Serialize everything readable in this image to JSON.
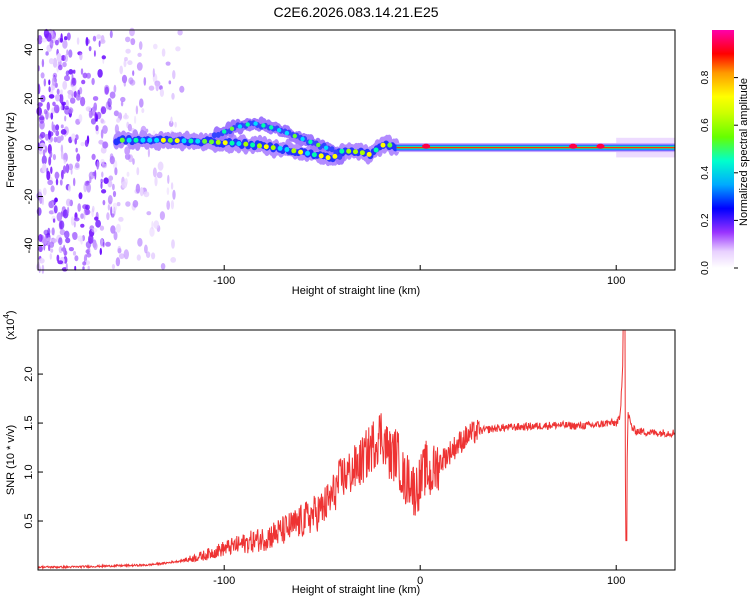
{
  "title": "C2E6.2026.083.14.21.E25",
  "chart_data": [
    {
      "type": "heatmap",
      "xlabel": "Height of straight line (km)",
      "ylabel": "Frequency (Hz)",
      "xlim": [
        -195,
        130
      ],
      "ylim": [
        -50,
        48
      ],
      "xticks": [
        -100,
        0,
        100
      ],
      "xtick_labels": [
        "-100",
        "",
        "100"
      ],
      "yticks": [
        -40,
        -20,
        0,
        20,
        40
      ],
      "ytick_labels": [
        "-40",
        "-20",
        "0",
        "20",
        "40"
      ],
      "grid": false,
      "colorbar": {
        "label": "Normalized spectral amplitude",
        "range": [
          0,
          1
        ],
        "ticks": [
          0,
          0.2,
          0.4,
          0.6,
          0.8
        ],
        "tick_labels": [
          "0.0",
          "0.2",
          "0.4",
          "0.6",
          "0.8"
        ],
        "position": "right"
      },
      "ridge": {
        "x": [
          -155,
          -130,
          -110,
          -100,
          -90,
          -80,
          -70,
          -60,
          -50,
          -45,
          -40,
          -35,
          -30,
          -25,
          -20,
          -15,
          -10,
          -5,
          0,
          5,
          10,
          20,
          40,
          60,
          80,
          100,
          105,
          110,
          130
        ],
        "y": [
          3,
          3,
          2.5,
          2,
          1.5,
          0.5,
          -0.5,
          -2,
          -3.5,
          -4.5,
          -1.5,
          -1.5,
          -2,
          -3,
          1,
          1,
          0,
          0,
          1,
          1,
          0,
          0,
          0,
          0,
          0,
          0,
          0,
          0,
          0
        ]
      },
      "secondary_ridge": {
        "x": [
          -105,
          -95,
          -85,
          -75,
          -65,
          -55,
          -45,
          -40
        ],
        "y": [
          5,
          8,
          10,
          8,
          5,
          2,
          -1,
          -5
        ]
      }
    },
    {
      "type": "line",
      "xlabel": "Height of straight line (km)",
      "ylabel": "SNR (10 * v/v)",
      "scale_label": "(x10",
      "scale_exp": "4",
      "scale_close": ")",
      "xlim": [
        -195,
        130
      ],
      "ylim": [
        0,
        2.45
      ],
      "xticks": [
        -100,
        0,
        100
      ],
      "xtick_labels": [
        "-100",
        "0",
        "100"
      ],
      "yticks": [
        0.5,
        1.0,
        1.5,
        2.0
      ],
      "ytick_labels": [
        "0.5",
        "1.0",
        "1.5",
        "2.0"
      ],
      "grid": false,
      "series": [
        {
          "color": "#ee3333",
          "x": [
            -195,
            -180,
            -160,
            -140,
            -130,
            -120,
            -110,
            -100,
            -90,
            -80,
            -70,
            -60,
            -50,
            -45,
            -40,
            -35,
            -30,
            -25,
            -20,
            -18,
            -15,
            -12,
            -10,
            -8,
            -5,
            -3,
            0,
            3,
            5,
            8,
            10,
            15,
            20,
            25,
            30,
            40,
            50,
            60,
            70,
            80,
            90,
            95,
            100,
            102,
            104,
            105,
            106,
            108,
            110,
            120,
            130
          ],
          "y": [
            0.03,
            0.03,
            0.04,
            0.05,
            0.07,
            0.1,
            0.15,
            0.22,
            0.27,
            0.32,
            0.4,
            0.5,
            0.62,
            0.75,
            0.95,
            1.0,
            1.1,
            1.25,
            1.4,
            1.3,
            1.15,
            1.2,
            1.05,
            0.9,
            0.95,
            0.8,
            0.9,
            1.05,
            0.95,
            1.05,
            1.1,
            1.2,
            1.3,
            1.38,
            1.42,
            1.45,
            1.46,
            1.47,
            1.48,
            1.47,
            1.48,
            1.5,
            1.5,
            1.55,
            2.4,
            0.3,
            1.6,
            1.45,
            1.42,
            1.4,
            1.4
          ]
        }
      ]
    }
  ]
}
